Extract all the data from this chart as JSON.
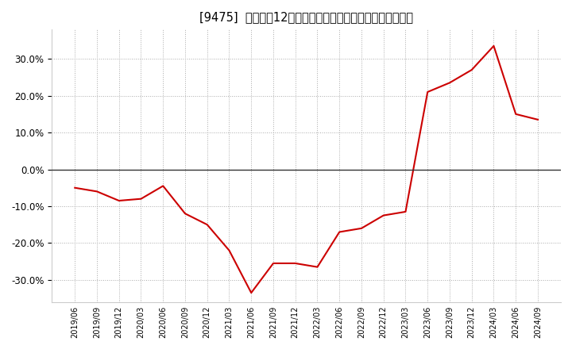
{
  "title": "[9475]  売上高の12か月移動合計の対前年同期増減率の推移",
  "line_color": "#cc0000",
  "background_color": "#ffffff",
  "plot_bg_color": "#ffffff",
  "grid_color": "#aaaaaa",
  "zero_line_color": "#333333",
  "dates": [
    "2019/06",
    "2019/09",
    "2019/12",
    "2020/03",
    "2020/06",
    "2020/09",
    "2020/12",
    "2021/03",
    "2021/06",
    "2021/09",
    "2021/12",
    "2022/03",
    "2022/06",
    "2022/09",
    "2022/12",
    "2023/03",
    "2023/06",
    "2023/09",
    "2023/12",
    "2024/03",
    "2024/06",
    "2024/09"
  ],
  "values": [
    -5.0,
    -6.0,
    -8.5,
    -8.0,
    -4.5,
    -12.0,
    -15.0,
    -22.0,
    -33.5,
    -25.5,
    -25.5,
    -26.5,
    -17.0,
    -16.0,
    -12.5,
    -11.5,
    21.0,
    23.5,
    27.0,
    33.5,
    15.0,
    13.5
  ],
  "yticks": [
    -30.0,
    -20.0,
    -10.0,
    0.0,
    10.0,
    20.0,
    30.0
  ],
  "ylim": [
    -36,
    38
  ],
  "figsize": [
    7.2,
    4.4
  ],
  "dpi": 100
}
